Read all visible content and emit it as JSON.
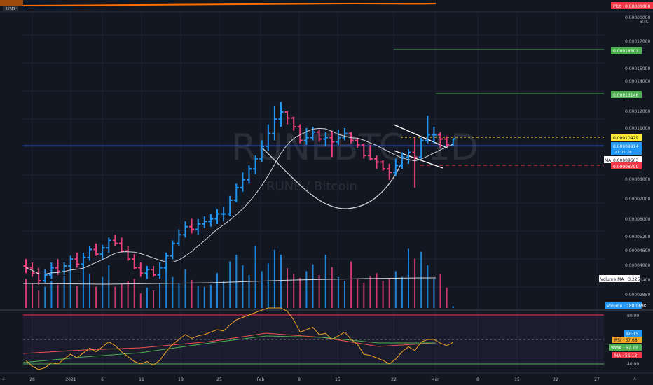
{
  "watermark": {
    "symbol": "RUNEBTC, 1D",
    "name": "RUNE / Bitcoin"
  },
  "top_panel": {
    "currency_badge": "USD",
    "plot_label": "Plot",
    "plot_value": "0.00000000"
  },
  "price_axis": {
    "currency": "BTC",
    "ticks": [
      "0.00000000",
      "0.00017000",
      "0.00015000",
      "0.00014000",
      "0.00012000",
      "0.00011000",
      "0.00008000",
      "0.00007000",
      "0.00006000",
      "0.00005200",
      "0.00004600",
      "0.00004000",
      "0.00003400",
      "0.00002850"
    ],
    "labels": {
      "target_high": "0.00018503",
      "target_mid": "0.00013146",
      "resistance": "0.00010429",
      "last_price": "0.00009914",
      "countdown": "21:05:28",
      "ma_label": "MA",
      "ma_value": "0.00009663",
      "support": "0.00008799",
      "volume_ma_label": "Volume MA",
      "volume_ma_value": "3.225M",
      "volume_label": "Volume",
      "volume_value": "188.069K"
    }
  },
  "rsi_panel": {
    "ticks": [
      "80.00",
      "40.00"
    ],
    "labels": {
      "upper": "60.15",
      "rsi_name": "RSI",
      "rsi_value": "57.68",
      "wma_name": "WMA",
      "wma_value": "57.23",
      "ma_name": "MA",
      "ma_value": "55.13"
    }
  },
  "time_axis": {
    "ticks": [
      "26",
      "2021",
      "6",
      "11",
      "18",
      "25",
      "Feb",
      "8",
      "15",
      "22",
      "Mar",
      "8",
      "15",
      "22",
      "27"
    ],
    "left_icon": "Z",
    "right_icon": "A"
  },
  "colors": {
    "up": "#2196f3",
    "down": "#ec407a",
    "ma": "#d1d4dc",
    "rsi": "#f5a623",
    "rsi_ma": "#ef5350",
    "rsi_wma": "#4caf50",
    "target": "#4caf50",
    "resistance": "#ffeb3b",
    "support": "#f23645",
    "price": "#2962ff",
    "top_plot": "#ff6d00"
  },
  "chart_data": {
    "type": "bar",
    "title": "RUNEBTC, 1D",
    "subtitle": "RUNE / Bitcoin",
    "x": [
      "2020-12-24",
      "2020-12-25",
      "2020-12-26",
      "2020-12-27",
      "2020-12-28",
      "2020-12-29",
      "2020-12-30",
      "2020-12-31",
      "2021-01-01",
      "2021-01-02",
      "2021-01-03",
      "2021-01-04",
      "2021-01-05",
      "2021-01-06",
      "2021-01-07",
      "2021-01-08",
      "2021-01-09",
      "2021-01-10",
      "2021-01-11",
      "2021-01-12",
      "2021-01-13",
      "2021-01-14",
      "2021-01-15",
      "2021-01-16",
      "2021-01-17",
      "2021-01-18",
      "2021-01-19",
      "2021-01-20",
      "2021-01-21",
      "2021-01-22",
      "2021-01-23",
      "2021-01-24",
      "2021-01-25",
      "2021-01-26",
      "2021-01-27",
      "2021-01-28",
      "2021-01-29",
      "2021-01-30",
      "2021-01-31",
      "2021-02-01",
      "2021-02-02",
      "2021-02-03",
      "2021-02-04",
      "2021-02-05",
      "2021-02-06",
      "2021-02-07",
      "2021-02-08",
      "2021-02-09",
      "2021-02-10",
      "2021-02-11",
      "2021-02-12",
      "2021-02-13",
      "2021-02-14",
      "2021-02-15",
      "2021-02-16",
      "2021-02-17",
      "2021-02-18",
      "2021-02-19",
      "2021-02-20",
      "2021-02-21",
      "2021-02-22",
      "2021-02-23",
      "2021-02-24",
      "2021-02-25",
      "2021-02-26",
      "2021-02-27",
      "2021-02-28",
      "2021-03-01"
    ],
    "series": [
      {
        "name": "Price",
        "open": [
          4e-05,
          3.95e-05,
          3.8e-05,
          3.6e-05,
          3.75e-05,
          3.95e-05,
          3.85e-05,
          4e-05,
          4.2e-05,
          4.05e-05,
          4.25e-05,
          4.5e-05,
          4.35e-05,
          4.55e-05,
          4.8e-05,
          4.7e-05,
          4.45e-05,
          4.2e-05,
          3.95e-05,
          3.8e-05,
          3.9e-05,
          3.75e-05,
          3.95e-05,
          4.3e-05,
          4.7e-05,
          5e-05,
          5.3e-05,
          5.2e-05,
          5.4e-05,
          5.5e-05,
          5.6e-05,
          5.8e-05,
          5.8e-05,
          6.4e-05,
          7e-05,
          7.4e-05,
          8e-05,
          8.6e-05,
          9.4e-05,
          0.000103,
          0.000114,
          0.00012,
          0.000115,
          0.000108,
          9.8e-05,
          0.0001,
          0.000104,
          9.9e-05,
          0.0001,
          9.7e-05,
          0.0001,
          0.000103,
          9.8e-05,
          9.5e-05,
          8.8e-05,
          8.6e-05,
          8.4e-05,
          8e-05,
          7.8e-05,
          8.2e-05,
          8.7e-05,
          9e-05,
          8.7e-05,
          9.8e-05,
          0.000102,
          0.000102,
          9.9e-05,
          9.5e-05
        ],
        "high": [
          4.2e-05,
          4.1e-05,
          3.95e-05,
          3.9e-05,
          4.1e-05,
          4.2e-05,
          4.1e-05,
          4.3e-05,
          4.4e-05,
          4.4e-05,
          4.6e-05,
          4.7e-05,
          4.65e-05,
          4.9e-05,
          5e-05,
          4.9e-05,
          4.6e-05,
          4.35e-05,
          4.1e-05,
          4e-05,
          4e-05,
          4.1e-05,
          4.4e-05,
          4.8e-05,
          5.2e-05,
          5.5e-05,
          5.6e-05,
          5.6e-05,
          5.7e-05,
          5.8e-05,
          6e-05,
          6.1e-05,
          6.6e-05,
          7.2e-05,
          7.8e-05,
          8.2e-05,
          8.8e-05,
          9.8e-05,
          0.00011,
          0.000125,
          0.000129,
          0.000121,
          0.000116,
          0.00011,
          0.000107,
          0.000108,
          0.000106,
          0.000104,
          0.000105,
          0.000106,
          0.000107,
          0.000104,
          0.0001,
          9.6e-05,
          9.5e-05,
          8.8e-05,
          8.5e-05,
          8.3e-05,
          8.6e-05,
          9e-05,
          9.2e-05,
          0.0001,
          0.0001,
          0.000117,
          0.000108,
          0.000104,
          0.000101,
          9.9e-05
        ],
        "low": [
          3.8e-05,
          3.7e-05,
          3.5e-05,
          3.55e-05,
          3.65e-05,
          3.75e-05,
          3.75e-05,
          3.85e-05,
          3.95e-05,
          3.95e-05,
          4.15e-05,
          4.3e-05,
          4.2e-05,
          4.4e-05,
          4.6e-05,
          4.4e-05,
          4.15e-05,
          3.9e-05,
          3.7e-05,
          3.65e-05,
          3.7e-05,
          3.65e-05,
          3.85e-05,
          4.2e-05,
          4.6e-05,
          4.9e-05,
          5.05e-05,
          5e-05,
          5.25e-05,
          5.3e-05,
          5.4e-05,
          5.5e-05,
          5.7e-05,
          6.3e-05,
          6.8e-05,
          7.2e-05,
          7.7e-05,
          8.4e-05,
          9.1e-05,
          9.8e-05,
          0.000108,
          0.00011,
          0.000105,
          9.6e-05,
          9.5e-05,
          9.8e-05,
          9.7e-05,
          9.4e-05,
          8.7e-05,
          9.5e-05,
          9.8e-05,
          9.6e-05,
          9.3e-05,
          8.6e-05,
          8.5e-05,
          8e-05,
          7.9e-05,
          7.4e-05,
          7.6e-05,
          8e-05,
          8.3e-05,
          7e-05,
          8.6e-05,
          9.6e-05,
          9.6e-05,
          9.3e-05,
          9.4e-05,
          9.4e-05
        ],
        "close": [
          3.95e-05,
          3.8e-05,
          3.6e-05,
          3.75e-05,
          3.95e-05,
          3.85e-05,
          4e-05,
          4.2e-05,
          4.05e-05,
          4.25e-05,
          4.5e-05,
          4.35e-05,
          4.55e-05,
          4.8e-05,
          4.7e-05,
          4.45e-05,
          4.2e-05,
          3.95e-05,
          3.8e-05,
          3.9e-05,
          3.75e-05,
          3.95e-05,
          4.3e-05,
          4.7e-05,
          5e-05,
          5.3e-05,
          5.2e-05,
          5.4e-05,
          5.5e-05,
          5.6e-05,
          5.8e-05,
          5.8e-05,
          6.4e-05,
          7e-05,
          7.4e-05,
          8e-05,
          8.6e-05,
          9.4e-05,
          0.000103,
          0.000114,
          0.00012,
          0.000115,
          0.000108,
          9.8e-05,
          0.0001,
          0.000104,
          9.9e-05,
          0.0001,
          9.7e-05,
          0.0001,
          0.000103,
          9.8e-05,
          9.5e-05,
          8.8e-05,
          8.6e-05,
          8.4e-05,
          8e-05,
          7.8e-05,
          8.2e-05,
          8.7e-05,
          9e-05,
          8.7e-05,
          9.8e-05,
          0.000102,
          0.000102,
          9.9e-05,
          9.5e-05,
          9.91e-05
        ]
      },
      {
        "name": "Volume",
        "values": [
          3.0,
          2.5,
          1.8,
          2.2,
          2.8,
          2.4,
          3.3,
          3.8,
          2.3,
          4.5,
          3.5,
          2.2,
          3.2,
          4.4,
          2.2,
          2.5,
          2.8,
          3.0,
          1.5,
          2.1,
          1.8,
          2.5,
          3.8,
          3.2,
          2.6,
          4.0,
          2.9,
          2.3,
          2.2,
          2.4,
          3.6,
          2.8,
          4.8,
          5.5,
          4.4,
          3.4,
          6.4,
          3.8,
          4.6,
          6.0,
          5.5,
          4.1,
          3.5,
          3.1,
          3.8,
          4.5,
          3.4,
          5.5,
          4.2,
          3.2,
          2.8,
          4.8,
          3.0,
          2.6,
          3.3,
          3.6,
          2.8,
          3.0,
          3.8,
          3.2,
          6.1,
          5.1,
          5.8,
          4.4,
          3.0,
          3.5,
          2.1,
          0.19
        ]
      },
      {
        "name": "RSI",
        "values": [
          43,
          38,
          34,
          37,
          41,
          40,
          44,
          48,
          45,
          49,
          53,
          50,
          54,
          58,
          55,
          50,
          46,
          42,
          40,
          42,
          39,
          43,
          50,
          56,
          60,
          64,
          61,
          63,
          64,
          66,
          68,
          67,
          72,
          76,
          78,
          80,
          82,
          84,
          86,
          87,
          88,
          83,
          76,
          66,
          68,
          70,
          64,
          65,
          60,
          63,
          66,
          60,
          56,
          48,
          47,
          45,
          43,
          40,
          44,
          50,
          54,
          51,
          58,
          60,
          60,
          57,
          55,
          57.68
        ]
      }
    ]
  }
}
